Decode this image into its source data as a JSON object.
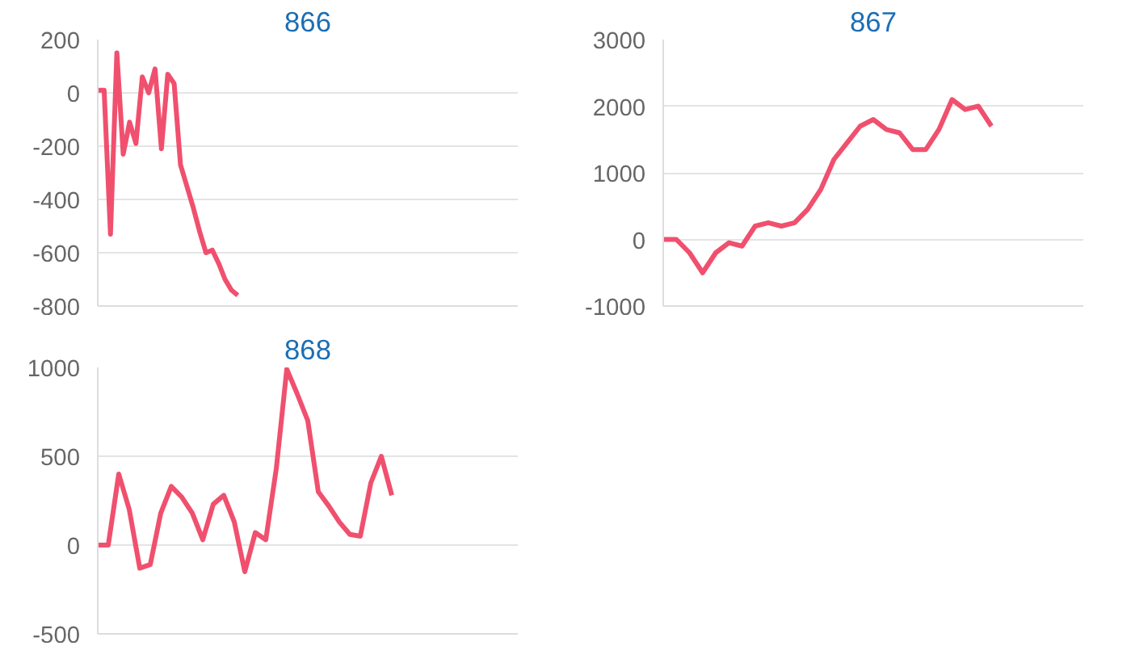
{
  "chart_data": [
    {
      "type": "line",
      "title": "866",
      "categories": [
        null,
        null,
        null,
        null,
        null,
        null,
        null,
        null,
        null,
        null,
        null,
        null,
        null,
        null,
        null,
        null,
        null,
        null,
        null,
        null,
        null,
        null,
        null,
        null,
        null,
        null,
        null,
        null,
        null,
        null,
        null,
        null,
        null,
        null,
        null,
        null,
        null,
        null,
        null,
        null,
        null,
        null,
        null,
        null,
        null,
        null,
        null,
        null,
        null,
        null,
        null,
        null,
        null,
        null,
        null,
        null,
        null,
        null,
        null,
        null,
        null,
        null,
        null,
        null,
        null,
        null,
        null
      ],
      "series": [
        {
          "color": "#f0506e",
          "values": [
            10,
            10,
            -530,
            150,
            -230,
            -110,
            -190,
            60,
            0,
            90,
            -210,
            70,
            35,
            -270,
            -350,
            -430,
            -520,
            -600,
            -590,
            -640,
            -700,
            -740,
            -760,
            null,
            null,
            null,
            null,
            null,
            null,
            null,
            null,
            null,
            null,
            null,
            null,
            null,
            null,
            null,
            null,
            null,
            null,
            null,
            null,
            null,
            null,
            null,
            null,
            null,
            null,
            null,
            null,
            null,
            null,
            null,
            null,
            null,
            null,
            null,
            null,
            null,
            null,
            null,
            null,
            null,
            null,
            null,
            null
          ]
        }
      ],
      "ylim": [
        -800,
        200
      ],
      "yticks": [
        -800,
        -600,
        -400,
        -200,
        0,
        200
      ],
      "grid": "y",
      "tick_labels": "y",
      "line_style": "solid",
      "marker": "none"
    },
    {
      "type": "line",
      "title": "867",
      "categories": [
        null,
        null,
        null,
        null,
        null,
        null,
        null,
        null,
        null,
        null,
        null,
        null,
        null,
        null,
        null,
        null,
        null,
        null,
        null,
        null,
        null,
        null,
        null,
        null,
        null,
        null,
        null,
        null,
        null,
        null,
        null,
        null,
        null
      ],
      "series": [
        {
          "color": "#f0506e",
          "values": [
            0,
            0,
            -200,
            -500,
            -200,
            -50,
            -100,
            200,
            250,
            200,
            250,
            450,
            750,
            1200,
            1450,
            1700,
            1800,
            1650,
            1600,
            1350,
            1350,
            1650,
            2100,
            1950,
            2000,
            1700,
            null,
            null,
            null,
            null,
            null,
            null,
            null
          ]
        }
      ],
      "ylim": [
        -1000,
        3000
      ],
      "yticks": [
        -1000,
        0,
        1000,
        2000,
        3000
      ],
      "grid": "y",
      "tick_labels": "y",
      "line_style": "solid",
      "marker": "none"
    },
    {
      "type": "line",
      "title": "868",
      "categories": [
        null,
        null,
        null,
        null,
        null,
        null,
        null,
        null,
        null,
        null,
        null,
        null,
        null,
        null,
        null,
        null,
        null,
        null,
        null,
        null,
        null,
        null,
        null,
        null,
        null,
        null,
        null,
        null,
        null,
        null,
        null,
        null,
        null,
        null,
        null,
        null,
        null,
        null,
        null,
        null,
        null
      ],
      "series": [
        {
          "color": "#f0506e",
          "values": [
            0,
            0,
            400,
            200,
            -130,
            -110,
            180,
            330,
            270,
            180,
            30,
            230,
            280,
            130,
            -150,
            70,
            30,
            430,
            990,
            850,
            700,
            300,
            220,
            130,
            60,
            50,
            350,
            500,
            280,
            null,
            null,
            null,
            null,
            null,
            null,
            null,
            null,
            null,
            null,
            null,
            null
          ]
        }
      ],
      "ylim": [
        -500,
        1000
      ],
      "yticks": [
        -500,
        0,
        500,
        1000
      ],
      "grid": "y",
      "tick_labels": "y",
      "line_style": "solid",
      "marker": "none"
    }
  ]
}
